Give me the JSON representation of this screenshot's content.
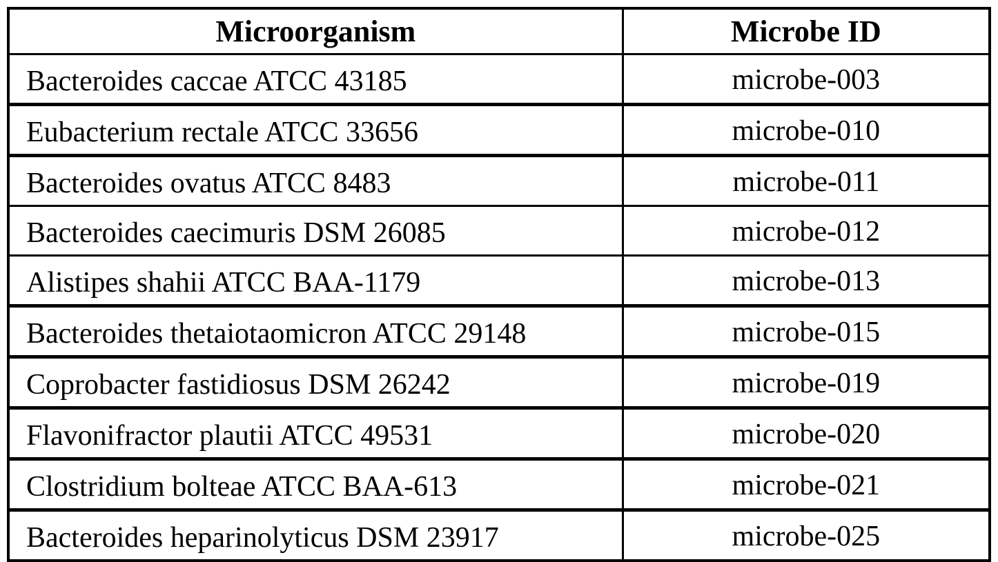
{
  "table": {
    "columns": {
      "microorganism": "Microorganism",
      "microbe_id": "Microbe ID"
    },
    "rows": [
      {
        "microorganism": "Bacteroides caccae ATCC 43185",
        "microbe_id": "microbe-003"
      },
      {
        "microorganism": "Eubacterium rectale ATCC 33656",
        "microbe_id": "microbe-010"
      },
      {
        "microorganism": "Bacteroides ovatus ATCC 8483",
        "microbe_id": "microbe-011"
      },
      {
        "microorganism": "Bacteroides caecimuris DSM 26085",
        "microbe_id": "microbe-012"
      },
      {
        "microorganism": "Alistipes shahii ATCC BAA-1179",
        "microbe_id": "microbe-013"
      },
      {
        "microorganism": "Bacteroides thetaiotaomicron ATCC 29148",
        "microbe_id": "microbe-015"
      },
      {
        "microorganism": "Coprobacter fastidiosus DSM 26242",
        "microbe_id": "microbe-019"
      },
      {
        "microorganism": "Flavonifractor plautii ATCC 49531",
        "microbe_id": "microbe-020"
      },
      {
        "microorganism": "Clostridium bolteae ATCC BAA-613",
        "microbe_id": "microbe-021"
      },
      {
        "microorganism": "Bacteroides heparinolyticus DSM 23917",
        "microbe_id": "microbe-025"
      }
    ],
    "colors": {
      "border": "#000000",
      "text": "#000000",
      "background": "#ffffff"
    }
  }
}
